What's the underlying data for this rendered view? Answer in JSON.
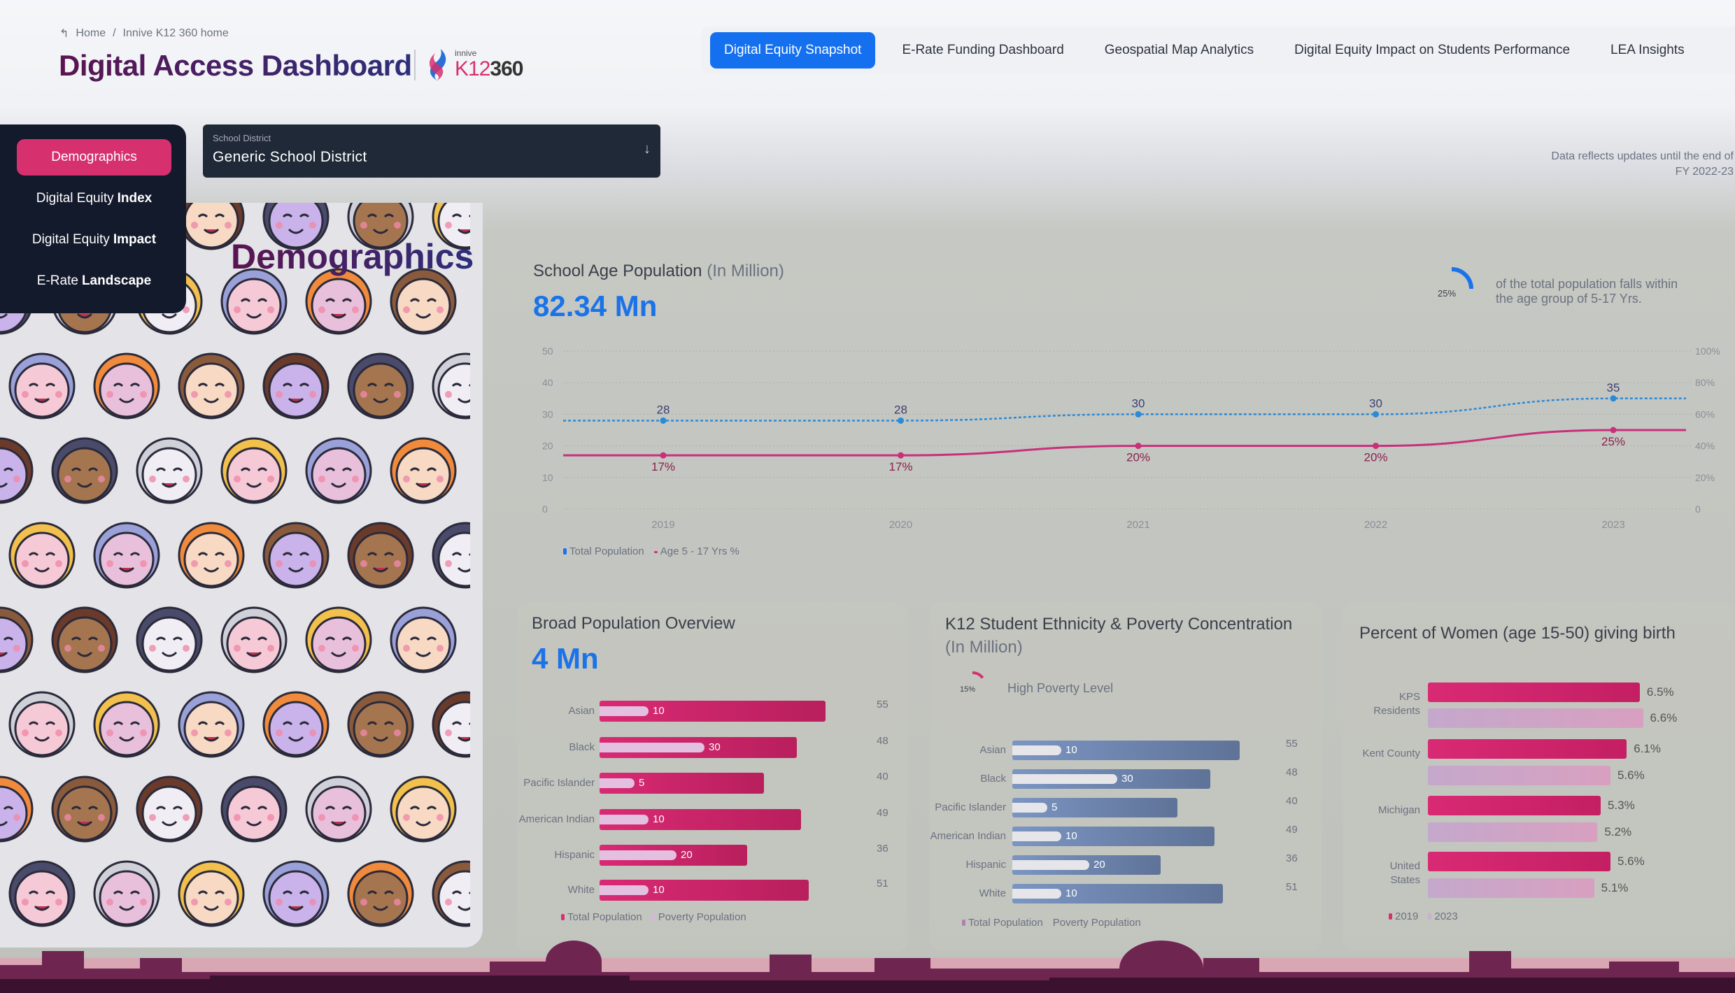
{
  "breadcrumb": {
    "back_icon": "back-arrow-icon",
    "home": "Home",
    "sep": "/",
    "current": "Innive K12 360 home"
  },
  "header": {
    "title": "Digital Access Dashboard",
    "logo_small": "innive",
    "logo_k12": "K12",
    "logo_360": "360"
  },
  "nav": {
    "tabs": [
      {
        "label": "Digital Equity Snapshot",
        "active": true
      },
      {
        "label": "E-Rate Funding Dashboard"
      },
      {
        "label": "Geospatial Map Analytics"
      },
      {
        "label": "Digital Equity Impact on Students Performance"
      },
      {
        "label": "LEA Insights"
      }
    ]
  },
  "note": {
    "line1": "Data reflects updates until the end of",
    "line2": "FY 2022-23"
  },
  "sidebar": {
    "items": [
      {
        "pre": "Demographics",
        "bold": "",
        "active": true
      },
      {
        "pre": "Digital Equity",
        "bold": "Index"
      },
      {
        "pre": "Digital Equity",
        "bold": "Impact"
      },
      {
        "pre": "E-Rate",
        "bold": "Landscape"
      }
    ]
  },
  "filter": {
    "label": "School District",
    "value": "Generic School District"
  },
  "left_panel": {
    "heading": "Demographics"
  },
  "colors": {
    "accent": "#1a73e8",
    "pink": "#d6306f",
    "navy": "#131a2b",
    "blue_bar": "#7891bb"
  },
  "school_age": {
    "title": "School Age Population",
    "title_unit": "(In Million)",
    "value": "82.34 Mn",
    "donut_pct": 25,
    "donut_label": "25%",
    "note_line1": "of the total population falls within",
    "note_line2": "the age group of 5-17 Yrs."
  },
  "chart_data": [
    {
      "type": "line",
      "title": "School Age Population (In Million)",
      "categories": [
        "2019",
        "2020",
        "2021",
        "2022",
        "2023"
      ],
      "series": [
        {
          "name": "Total Population",
          "values": [
            28,
            28,
            30,
            30,
            35
          ],
          "labels": [
            "28",
            "28",
            "30",
            "30",
            "35"
          ]
        },
        {
          "name": "Age 5 - 17 Yrs %",
          "values": [
            17,
            17,
            20,
            20,
            25
          ],
          "labels": [
            "17%",
            "17%",
            "20%",
            "20%",
            "25%"
          ]
        }
      ],
      "yticks_left": [
        "50",
        "40",
        "30",
        "20",
        "10",
        "0"
      ],
      "yticks_right": [
        "100%",
        "80%",
        "60%",
        "40%",
        "20%",
        "0"
      ],
      "ylim": [
        0,
        50
      ],
      "legend": [
        "Total Population",
        "Age 5 - 17 Yrs %"
      ]
    },
    {
      "type": "bar",
      "title": "Broad Population Overview",
      "value": "4 Mn",
      "categories": [
        "Asian",
        "Black",
        "Pacific Islander",
        "American Indian",
        "Hispanic",
        "White"
      ],
      "series": [
        {
          "name": "Total Population",
          "values": [
            55,
            48,
            40,
            49,
            36,
            51
          ]
        },
        {
          "name": "Poverty Population",
          "values": [
            10,
            30,
            5,
            10,
            20,
            10
          ]
        }
      ],
      "legend": [
        "Total Population",
        "Poverty Population"
      ]
    },
    {
      "type": "bar",
      "title": "K12 Student Ethnicity & Poverty Concentration",
      "title_unit": "(In Million)",
      "donut_pct": 15,
      "donut_label": "15%",
      "donut_text": "High Poverty Level",
      "categories": [
        "Asian",
        "Black",
        "Pacific Islander",
        "American Indian",
        "Hispanic",
        "White"
      ],
      "series": [
        {
          "name": "Total Population",
          "values": [
            55,
            48,
            40,
            49,
            36,
            51
          ]
        },
        {
          "name": "Poverty Population",
          "values": [
            10,
            30,
            5,
            10,
            20,
            10
          ]
        }
      ],
      "legend": [
        "Total Population",
        "Poverty Population"
      ]
    },
    {
      "type": "bar",
      "title": "Percent of Women (age 15-50) giving birth",
      "categories": [
        "KPS Residents",
        "Kent County",
        "Michigan",
        "United States"
      ],
      "series": [
        {
          "name": "2019",
          "values": [
            6.5,
            6.1,
            5.3,
            5.6
          ],
          "labels": [
            "6.5%",
            "6.1%",
            "5.3%",
            "5.6%"
          ]
        },
        {
          "name": "2023",
          "values": [
            6.6,
            5.6,
            5.2,
            5.1
          ],
          "labels": [
            "6.6%",
            "5.6%",
            "5.2%",
            "5.1%"
          ]
        }
      ],
      "legend": [
        "2019",
        "2023"
      ]
    }
  ]
}
